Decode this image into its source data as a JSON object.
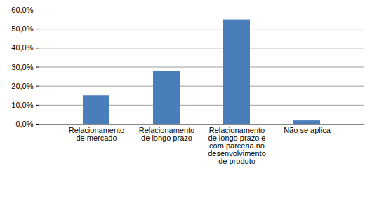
{
  "chart_data": {
    "type": "bar",
    "categories": [
      "Relacionamento de mercado",
      "Relacionamento de longo prazo",
      "Relacionamento de longo prazo e com parceria no desenvolvimento de produto",
      "Não se aplica"
    ],
    "values": [
      15.0,
      27.8,
      55.0,
      1.8
    ],
    "color": "#4a7ebb",
    "ylim": [
      0,
      60
    ],
    "yticks": [
      {
        "value": 0,
        "label": "0,0%"
      },
      {
        "value": 10,
        "label": "10,0%"
      },
      {
        "value": 20,
        "label": "20,0%"
      },
      {
        "value": 30,
        "label": "30,0%"
      },
      {
        "value": 40,
        "label": "40,0%"
      },
      {
        "value": 50,
        "label": "50,0%"
      },
      {
        "value": 60,
        "label": "60,0%"
      }
    ],
    "grid": true
  }
}
